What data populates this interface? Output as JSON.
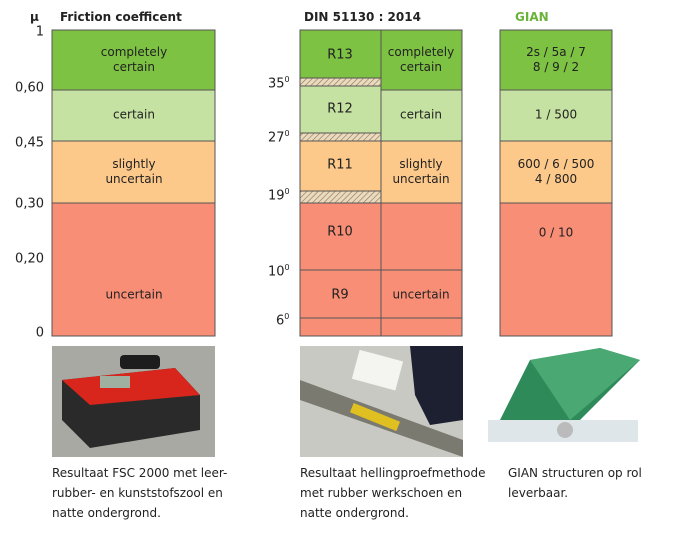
{
  "friction": {
    "symbol": "μ",
    "header": "Friction coefficent",
    "ticks": [
      "1",
      "0,60",
      "0,45",
      "0,30",
      "0,20",
      "0"
    ],
    "bands": [
      "completely\ncertain",
      "certain",
      "slightly\nuncertain",
      "uncertain"
    ],
    "caption": "Resultaat FSC 2000 met leer-\nrubber- en kunststofszool en\nnatte ondergrond."
  },
  "din": {
    "header": "DIN 51130 : 2014",
    "classes": [
      "R13",
      "R12",
      "R11",
      "R10",
      "R9"
    ],
    "angles": [
      {
        "value": "35",
        "sup": "0"
      },
      {
        "value": "27",
        "sup": "0"
      },
      {
        "value": "19",
        "sup": "0"
      },
      {
        "value": "10",
        "sup": "0"
      },
      {
        "value": "6",
        "sup": "0"
      }
    ],
    "bands": [
      "completely\ncertain",
      "certain",
      "slightly\nuncertain",
      "uncertain"
    ],
    "caption": "Resultaat hellingproefmethode\nmet rubber werkschoen en\nnatte ondergrond."
  },
  "gian": {
    "header": "GIAN",
    "bands": [
      "2s / 5a / 7\n8 / 9 / 2",
      "1 / 500",
      "600 / 6 / 500\n4 / 800",
      "0 / 10"
    ],
    "caption": "GIAN structuren op rol\nleverbaar."
  }
}
